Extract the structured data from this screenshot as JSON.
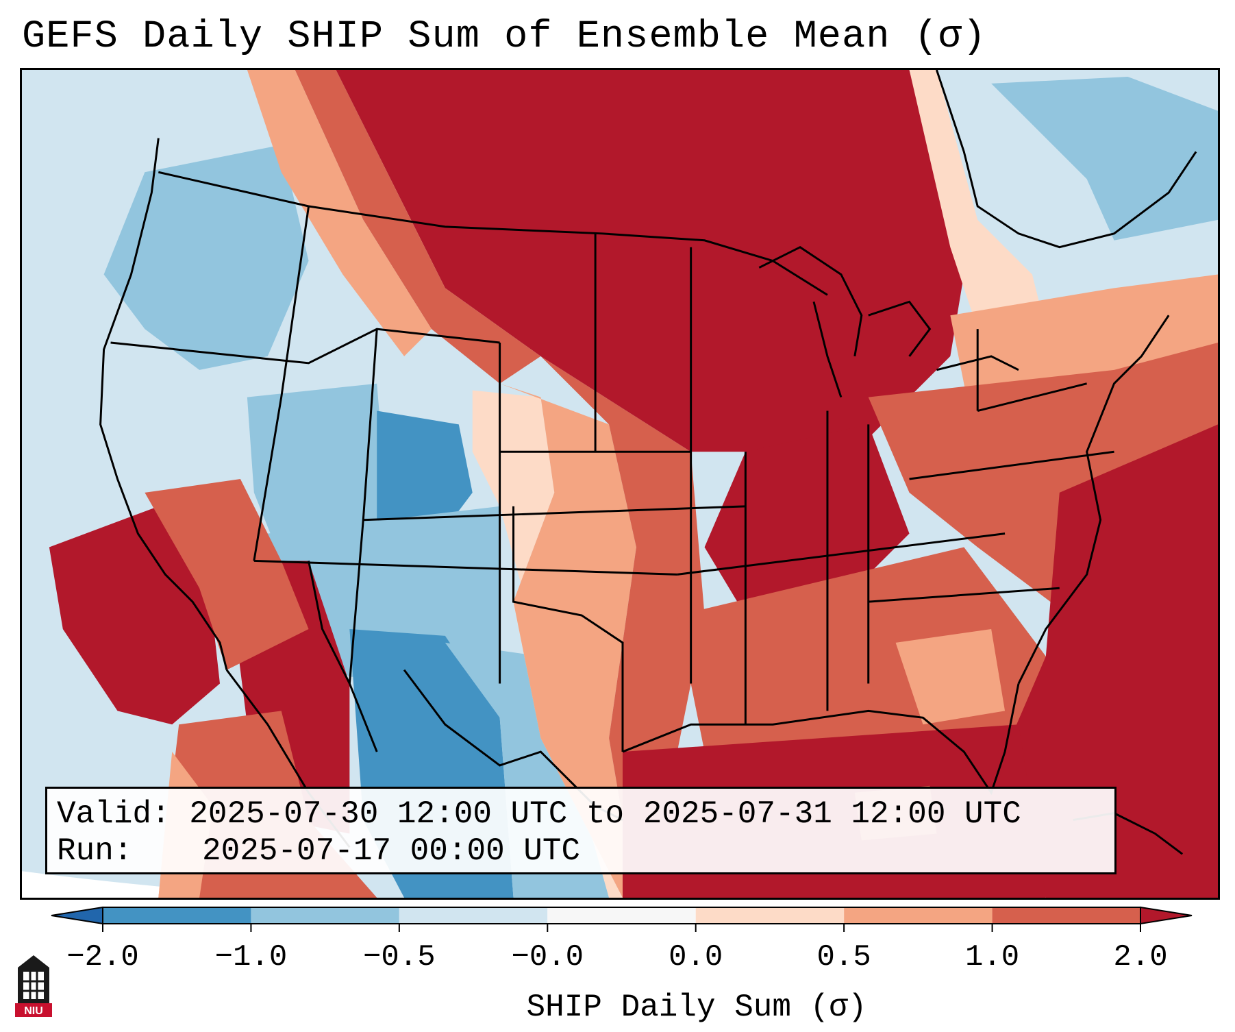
{
  "title": "GEFS Daily SHIP Sum of Ensemble Mean (σ)",
  "info": {
    "valid_label": "Valid:",
    "valid_value": "2025-07-30 12:00 UTC to 2025-07-31 12:00 UTC",
    "run_label": "Run:",
    "run_value": "2025-07-17 00:00 UTC"
  },
  "colorbar": {
    "label": "SHIP Daily Sum (σ)",
    "ticks": [
      "−2.0",
      "−1.0",
      "−0.5",
      "−0.0",
      "0.0",
      "0.5",
      "1.0",
      "2.0"
    ],
    "colors": [
      "#4393c3",
      "#92c5de",
      "#d1e5f0",
      "#f7f7f7",
      "#fddbc7",
      "#f4a582",
      "#d6604d",
      "#b2182b"
    ],
    "under_color": "#2166ac",
    "over_color": "#67001f"
  },
  "map_colors": {
    "ocean_outside": "#d1e5f0",
    "deep_red": "#b2182b",
    "red": "#d6604d",
    "salmon": "#f4a582",
    "peach": "#fddbc7",
    "light_blue": "#d1e5f0",
    "mid_blue": "#92c5de",
    "blue": "#4393c3"
  },
  "logo": {
    "text": "NIU",
    "icon": "niu-tower-icon"
  }
}
